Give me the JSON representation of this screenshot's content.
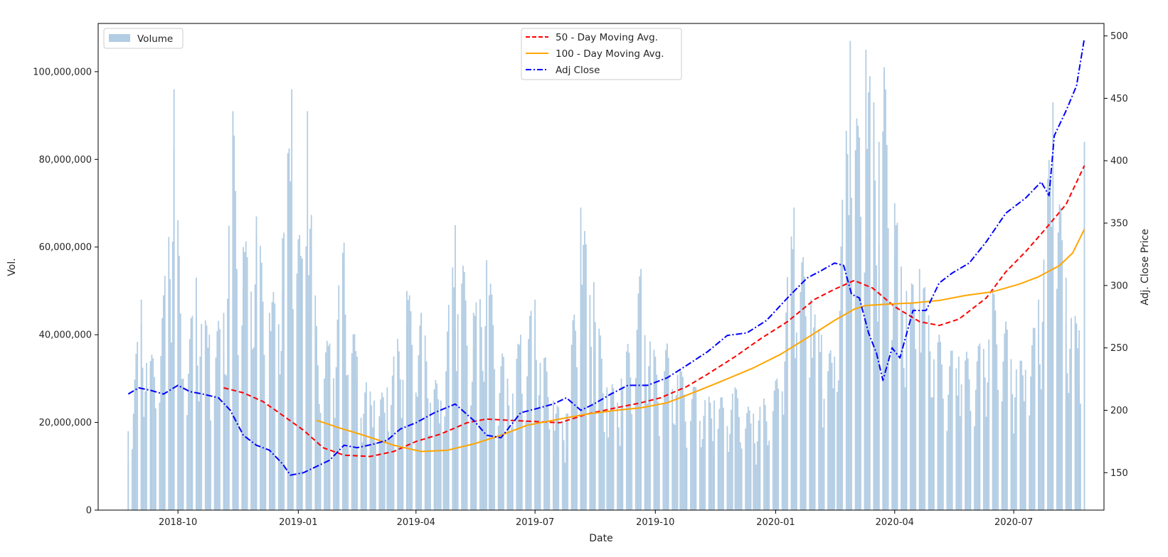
{
  "chart_data": {
    "type": "bar",
    "xlabel": "Date",
    "ylabel": "Vol.",
    "y2label": "Adj. Close Price",
    "xlim": [
      "2018-08-01",
      "2020-09-08"
    ],
    "ylim": [
      0,
      111000000
    ],
    "y2lim": [
      120,
      510
    ],
    "x_ticks": [
      "2018-10",
      "2019-01",
      "2019-04",
      "2019-07",
      "2019-10",
      "2020-01",
      "2020-04",
      "2020-07"
    ],
    "y_ticks": [
      {
        "value": 0,
        "label": "0"
      },
      {
        "value": 20000000,
        "label": "20,000,000"
      },
      {
        "value": 40000000,
        "label": "40,000,000"
      },
      {
        "value": 60000000,
        "label": "60,000,000"
      },
      {
        "value": 80000000,
        "label": "80,000,000"
      },
      {
        "value": 100000000,
        "label": "100,000,000"
      }
    ],
    "y2_ticks": [
      150,
      200,
      250,
      300,
      350,
      400,
      450,
      500
    ],
    "date_range": [
      "2018-08-24",
      "2020-08-24"
    ],
    "legend_left": {
      "placement": "upper-left",
      "entries": [
        "Volume"
      ]
    },
    "legend_center": {
      "placement": "upper-center",
      "entries": [
        "50 - Day Moving Avg.",
        "100 - Day Moving Avg.",
        "Adj Close"
      ]
    },
    "series": [
      {
        "name": "Volume",
        "axis": "left",
        "style": "bar",
        "color": "#b3cde3",
        "points": [
          [
            "2018-08-24",
            18000000
          ],
          [
            "2018-09-03",
            48000000
          ],
          [
            "2018-09-10",
            34000000
          ],
          [
            "2018-09-20",
            49000000
          ],
          [
            "2018-09-28",
            96000000
          ],
          [
            "2018-10-05",
            30000000
          ],
          [
            "2018-10-15",
            53000000
          ],
          [
            "2018-10-25",
            40000000
          ],
          [
            "2018-11-05",
            45000000
          ],
          [
            "2018-11-12",
            91000000
          ],
          [
            "2018-11-20",
            60000000
          ],
          [
            "2018-11-30",
            67000000
          ],
          [
            "2018-12-10",
            45000000
          ],
          [
            "2018-12-20",
            62000000
          ],
          [
            "2018-12-27",
            96000000
          ],
          [
            "2019-01-03",
            58000000
          ],
          [
            "2019-01-08",
            91000000
          ],
          [
            "2019-01-15",
            42000000
          ],
          [
            "2019-01-25",
            38000000
          ],
          [
            "2019-02-05",
            61000000
          ],
          [
            "2019-02-15",
            35000000
          ],
          [
            "2019-02-28",
            25000000
          ],
          [
            "2019-03-10",
            28000000
          ],
          [
            "2019-03-25",
            50000000
          ],
          [
            "2019-04-05",
            45000000
          ],
          [
            "2019-04-20",
            25000000
          ],
          [
            "2019-05-01",
            65000000
          ],
          [
            "2019-05-15",
            45000000
          ],
          [
            "2019-05-25",
            57000000
          ],
          [
            "2019-06-10",
            30000000
          ],
          [
            "2019-06-20",
            40000000
          ],
          [
            "2019-07-01",
            48000000
          ],
          [
            "2019-07-15",
            25000000
          ],
          [
            "2019-07-25",
            22000000
          ],
          [
            "2019-08-05",
            69000000
          ],
          [
            "2019-08-15",
            52000000
          ],
          [
            "2019-08-25",
            28000000
          ],
          [
            "2019-09-05",
            30000000
          ],
          [
            "2019-09-20",
            55000000
          ],
          [
            "2019-10-01",
            35000000
          ],
          [
            "2019-10-10",
            38000000
          ],
          [
            "2019-10-20",
            32000000
          ],
          [
            "2019-11-01",
            28000000
          ],
          [
            "2019-11-15",
            25000000
          ],
          [
            "2019-12-01",
            28000000
          ],
          [
            "2019-12-15",
            22000000
          ],
          [
            "2020-01-02",
            30000000
          ],
          [
            "2020-01-15",
            69000000
          ],
          [
            "2020-01-28",
            48000000
          ],
          [
            "2020-02-05",
            40000000
          ],
          [
            "2020-02-15",
            35000000
          ],
          [
            "2020-02-27",
            107000000
          ],
          [
            "2020-03-05",
            85000000
          ],
          [
            "2020-03-10",
            105000000
          ],
          [
            "2020-03-16",
            93000000
          ],
          [
            "2020-03-20",
            84000000
          ],
          [
            "2020-03-24",
            101000000
          ],
          [
            "2020-04-01",
            70000000
          ],
          [
            "2020-04-10",
            50000000
          ],
          [
            "2020-04-20",
            55000000
          ],
          [
            "2020-05-05",
            40000000
          ],
          [
            "2020-05-20",
            35000000
          ],
          [
            "2020-06-05",
            38000000
          ],
          [
            "2020-06-15",
            50000000
          ],
          [
            "2020-06-25",
            43000000
          ],
          [
            "2020-07-10",
            32000000
          ],
          [
            "2020-07-20",
            48000000
          ],
          [
            "2020-07-31",
            93000000
          ],
          [
            "2020-08-10",
            53000000
          ],
          [
            "2020-08-20",
            41000000
          ],
          [
            "2020-08-24",
            84000000
          ]
        ]
      },
      {
        "name": "50 - Day Moving Avg.",
        "axis": "right",
        "style": "dashed",
        "color": "#ff0000",
        "points": [
          [
            "2018-11-05",
            218
          ],
          [
            "2018-11-20",
            214
          ],
          [
            "2018-12-05",
            207
          ],
          [
            "2018-12-20",
            196
          ],
          [
            "2019-01-05",
            184
          ],
          [
            "2019-01-20",
            170
          ],
          [
            "2019-02-05",
            164
          ],
          [
            "2019-02-25",
            163
          ],
          [
            "2019-03-15",
            167
          ],
          [
            "2019-04-01",
            175
          ],
          [
            "2019-04-20",
            181
          ],
          [
            "2019-05-10",
            190
          ],
          [
            "2019-05-25",
            193
          ],
          [
            "2019-06-10",
            192
          ],
          [
            "2019-07-01",
            191
          ],
          [
            "2019-07-20",
            190
          ],
          [
            "2019-08-10",
            197
          ],
          [
            "2019-09-01",
            202
          ],
          [
            "2019-09-20",
            206
          ],
          [
            "2019-10-05",
            210
          ],
          [
            "2019-10-25",
            219
          ],
          [
            "2019-11-10",
            229
          ],
          [
            "2019-12-01",
            243
          ],
          [
            "2019-12-20",
            257
          ],
          [
            "2020-01-10",
            271
          ],
          [
            "2020-01-31",
            289
          ],
          [
            "2020-02-15",
            297
          ],
          [
            "2020-03-01",
            304
          ],
          [
            "2020-03-15",
            298
          ],
          [
            "2020-04-01",
            283
          ],
          [
            "2020-04-20",
            271
          ],
          [
            "2020-05-05",
            268
          ],
          [
            "2020-05-20",
            273
          ],
          [
            "2020-06-10",
            290
          ],
          [
            "2020-06-25",
            311
          ],
          [
            "2020-07-10",
            327
          ],
          [
            "2020-07-25",
            345
          ],
          [
            "2020-08-10",
            365
          ],
          [
            "2020-08-24",
            396
          ]
        ]
      },
      {
        "name": "100 - Day Moving Avg.",
        "axis": "right",
        "style": "solid",
        "color": "#ffa500",
        "points": [
          [
            "2019-01-15",
            192
          ],
          [
            "2019-02-01",
            186
          ],
          [
            "2019-02-20",
            180
          ],
          [
            "2019-03-15",
            172
          ],
          [
            "2019-04-05",
            167
          ],
          [
            "2019-04-25",
            168
          ],
          [
            "2019-05-15",
            173
          ],
          [
            "2019-06-05",
            180
          ],
          [
            "2019-06-25",
            188
          ],
          [
            "2019-07-20",
            193
          ],
          [
            "2019-08-10",
            197
          ],
          [
            "2019-09-01",
            200
          ],
          [
            "2019-09-20",
            202
          ],
          [
            "2019-10-10",
            206
          ],
          [
            "2019-11-01",
            215
          ],
          [
            "2019-11-20",
            223
          ],
          [
            "2019-12-15",
            234
          ],
          [
            "2020-01-05",
            245
          ],
          [
            "2020-01-25",
            258
          ],
          [
            "2020-02-15",
            272
          ],
          [
            "2020-03-01",
            281
          ],
          [
            "2020-03-10",
            284
          ],
          [
            "2020-03-25",
            285
          ],
          [
            "2020-04-15",
            286
          ],
          [
            "2020-05-05",
            288
          ],
          [
            "2020-05-25",
            292
          ],
          [
            "2020-06-15",
            295
          ],
          [
            "2020-07-05",
            301
          ],
          [
            "2020-07-20",
            307
          ],
          [
            "2020-08-05",
            316
          ],
          [
            "2020-08-15",
            326
          ],
          [
            "2020-08-24",
            345
          ]
        ]
      },
      {
        "name": "Adj Close",
        "axis": "right",
        "style": "dashdot",
        "color": "#0000ff",
        "points": [
          [
            "2018-08-24",
            213
          ],
          [
            "2018-09-01",
            218
          ],
          [
            "2018-09-10",
            216
          ],
          [
            "2018-09-20",
            213
          ],
          [
            "2018-10-01",
            220
          ],
          [
            "2018-10-10",
            215
          ],
          [
            "2018-10-20",
            213
          ],
          [
            "2018-11-01",
            210
          ],
          [
            "2018-11-10",
            200
          ],
          [
            "2018-11-20",
            180
          ],
          [
            "2018-11-30",
            172
          ],
          [
            "2018-12-10",
            168
          ],
          [
            "2018-12-20",
            157
          ],
          [
            "2018-12-26",
            148
          ],
          [
            "2019-01-05",
            150
          ],
          [
            "2019-01-15",
            155
          ],
          [
            "2019-01-25",
            160
          ],
          [
            "2019-02-05",
            172
          ],
          [
            "2019-02-15",
            170
          ],
          [
            "2019-02-28",
            173
          ],
          [
            "2019-03-10",
            176
          ],
          [
            "2019-03-20",
            185
          ],
          [
            "2019-04-01",
            190
          ],
          [
            "2019-04-15",
            198
          ],
          [
            "2019-05-01",
            205
          ],
          [
            "2019-05-15",
            192
          ],
          [
            "2019-05-25",
            180
          ],
          [
            "2019-06-05",
            178
          ],
          [
            "2019-06-20",
            198
          ],
          [
            "2019-07-01",
            201
          ],
          [
            "2019-07-15",
            205
          ],
          [
            "2019-07-25",
            210
          ],
          [
            "2019-08-05",
            200
          ],
          [
            "2019-08-15",
            205
          ],
          [
            "2019-08-28",
            213
          ],
          [
            "2019-09-10",
            220
          ],
          [
            "2019-09-25",
            220
          ],
          [
            "2019-10-10",
            226
          ],
          [
            "2019-10-25",
            236
          ],
          [
            "2019-11-10",
            247
          ],
          [
            "2019-11-25",
            260
          ],
          [
            "2019-12-10",
            262
          ],
          [
            "2019-12-25",
            272
          ],
          [
            "2020-01-10",
            290
          ],
          [
            "2020-01-25",
            306
          ],
          [
            "2020-02-05",
            312
          ],
          [
            "2020-02-15",
            318
          ],
          [
            "2020-02-22",
            316
          ],
          [
            "2020-02-28",
            293
          ],
          [
            "2020-03-05",
            290
          ],
          [
            "2020-03-12",
            262
          ],
          [
            "2020-03-18",
            246
          ],
          [
            "2020-03-23",
            224
          ],
          [
            "2020-03-30",
            250
          ],
          [
            "2020-04-05",
            242
          ],
          [
            "2020-04-15",
            280
          ],
          [
            "2020-04-25",
            280
          ],
          [
            "2020-05-05",
            302
          ],
          [
            "2020-05-15",
            310
          ],
          [
            "2020-05-28",
            318
          ],
          [
            "2020-06-10",
            335
          ],
          [
            "2020-06-25",
            358
          ],
          [
            "2020-07-10",
            370
          ],
          [
            "2020-07-22",
            383
          ],
          [
            "2020-07-28",
            372
          ],
          [
            "2020-08-01",
            420
          ],
          [
            "2020-08-10",
            440
          ],
          [
            "2020-08-18",
            460
          ],
          [
            "2020-08-24",
            498
          ]
        ]
      }
    ]
  }
}
